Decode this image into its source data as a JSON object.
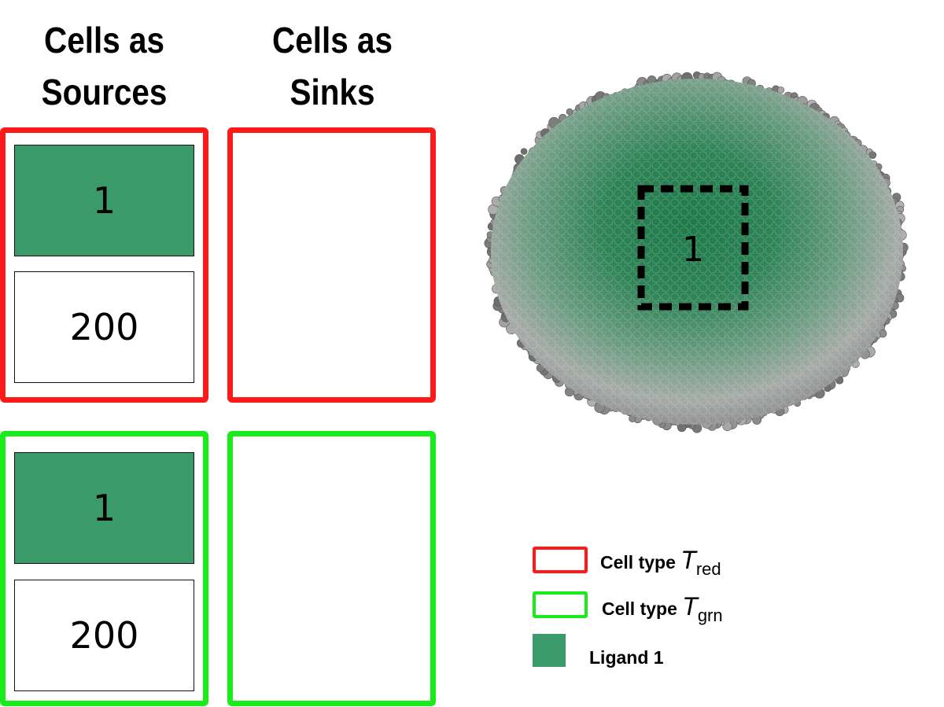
{
  "headers": {
    "sources": "Cells as Sources",
    "sinks": "Cells as Sinks"
  },
  "sources_red": {
    "ligand_value": "1",
    "other_value": "200"
  },
  "sources_green": {
    "ligand_value": "1",
    "other_value": "200"
  },
  "tissue": {
    "region_label": "1"
  },
  "legend": {
    "red": {
      "label": "Cell type",
      "symbol": "T",
      "subscript": "red"
    },
    "green": {
      "label": "Cell type",
      "symbol": "T",
      "subscript": "grn"
    },
    "ligand": {
      "label": "Ligand 1"
    }
  },
  "colors": {
    "red": "#ff1a1a",
    "green": "#1aeb1a",
    "ligand": "#3a9a6a",
    "tissue_grey": "#9a9a9a"
  }
}
